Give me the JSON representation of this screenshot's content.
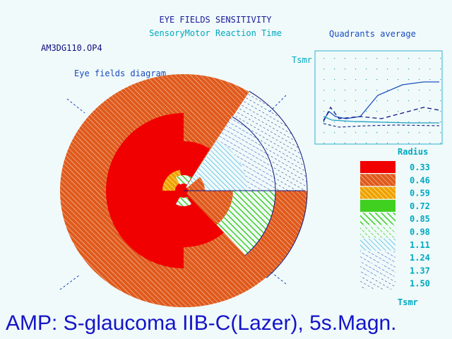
{
  "header": {
    "title": "EYE FIELDS SENSITIVITY",
    "subtitle": "SensoryMotor Reaction Time",
    "file": "AM3DG110.OP4"
  },
  "diagram": {
    "title": "Eye fields diagram"
  },
  "quadrants": {
    "title": "Quadrants average",
    "axis_label": "Tsmr"
  },
  "legend": {
    "title": "Radius",
    "items": [
      "0.33",
      "0.46",
      "0.59",
      "0.72",
      "0.85",
      "0.98",
      "1.11",
      "1.24",
      "1.37",
      "1.50"
    ],
    "unit": "Tsmr"
  },
  "footer": {
    "caption": "AMP: S-glaucoma IIB-C(Lazer), 5s.Magn."
  }
}
